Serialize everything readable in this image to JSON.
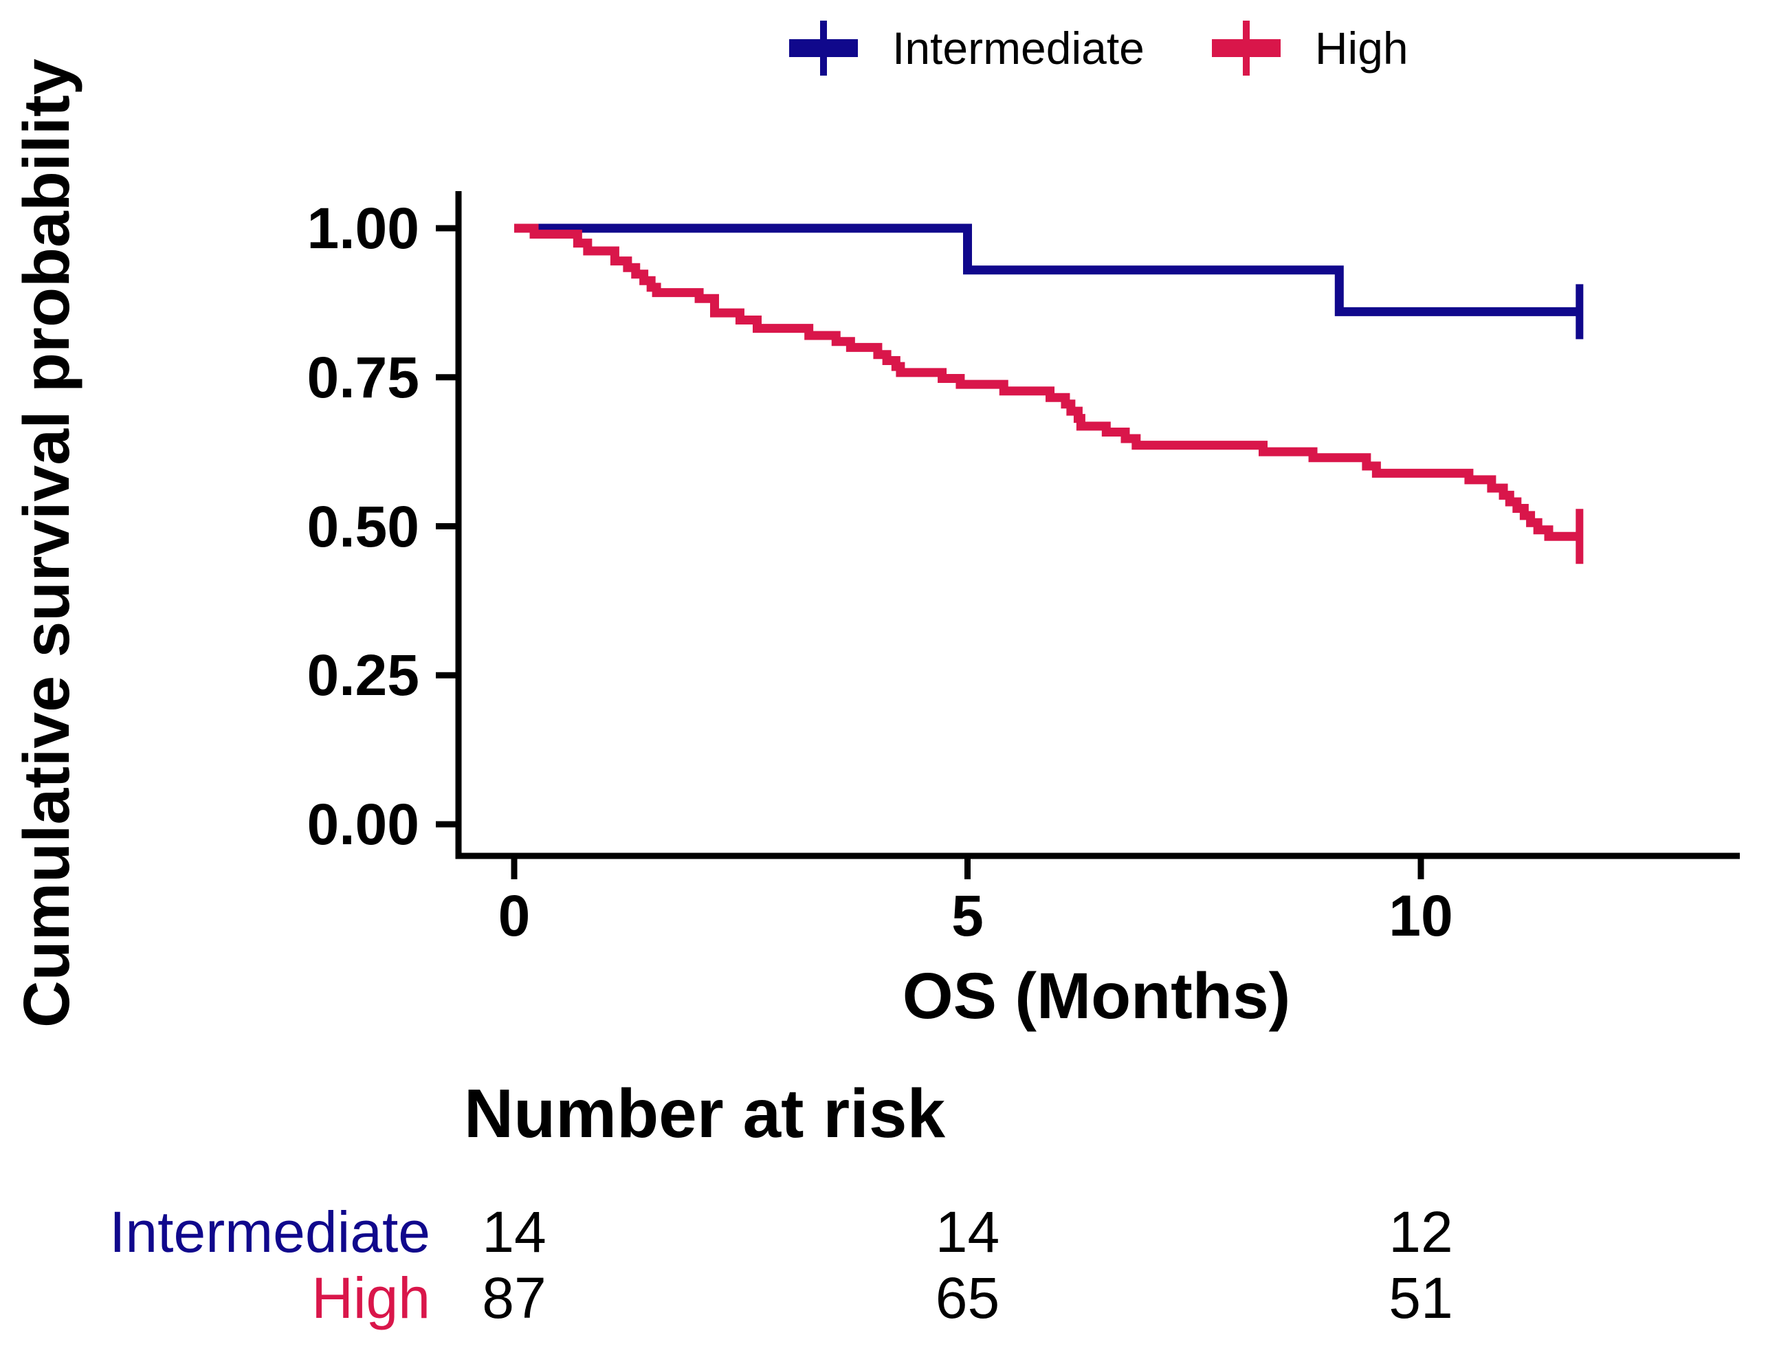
{
  "figure": {
    "y_axis_title": "Cumulative survival probability",
    "x_axis_title": "OS (Months)"
  },
  "chart_data": {
    "type": "line",
    "subtype": "kaplan-meier-step",
    "xlabel": "OS (Months)",
    "ylabel": "Cumulative survival probability",
    "xlim": [
      0,
      13.5
    ],
    "ylim": [
      0,
      1.0
    ],
    "x_ticks": [
      0,
      5,
      10
    ],
    "y_ticks": [
      1.0,
      0.75,
      0.5,
      0.25,
      0.0
    ],
    "y_tick_labels": [
      "1.00",
      "0.75",
      "0.50",
      "0.25",
      "0.00"
    ],
    "grid": false,
    "legend_position": "top",
    "axis_color": "#000000",
    "series": [
      {
        "name": "Intermediate",
        "color": "#10088C",
        "end_time": 11.75,
        "steps": [
          [
            0,
            1.0
          ],
          [
            5.0,
            0.93
          ],
          [
            9.1,
            0.86
          ]
        ],
        "censored": [
          [
            11.75,
            0.86
          ]
        ]
      },
      {
        "name": "High",
        "color": "#D9164A",
        "end_time": 11.75,
        "steps": [
          [
            0,
            1.0
          ],
          [
            0.22,
            0.99
          ],
          [
            0.7,
            0.975
          ],
          [
            0.81,
            0.962
          ],
          [
            1.11,
            0.945
          ],
          [
            1.25,
            0.934
          ],
          [
            1.34,
            0.923
          ],
          [
            1.43,
            0.912
          ],
          [
            1.51,
            0.901
          ],
          [
            1.57,
            0.892
          ],
          [
            2.04,
            0.882
          ],
          [
            2.21,
            0.858
          ],
          [
            2.49,
            0.846
          ],
          [
            2.68,
            0.832
          ],
          [
            3.25,
            0.82
          ],
          [
            3.55,
            0.81
          ],
          [
            3.71,
            0.8
          ],
          [
            4.01,
            0.788
          ],
          [
            4.11,
            0.778
          ],
          [
            4.21,
            0.768
          ],
          [
            4.26,
            0.758
          ],
          [
            4.72,
            0.748
          ],
          [
            4.92,
            0.738
          ],
          [
            5.4,
            0.727
          ],
          [
            5.91,
            0.716
          ],
          [
            6.08,
            0.705
          ],
          [
            6.14,
            0.693
          ],
          [
            6.22,
            0.681
          ],
          [
            6.25,
            0.668
          ],
          [
            6.53,
            0.658
          ],
          [
            6.74,
            0.647
          ],
          [
            6.86,
            0.636
          ],
          [
            8.26,
            0.625
          ],
          [
            8.81,
            0.615
          ],
          [
            9.4,
            0.601
          ],
          [
            9.51,
            0.589
          ],
          [
            10.53,
            0.578
          ],
          [
            10.78,
            0.564
          ],
          [
            10.91,
            0.552
          ],
          [
            10.98,
            0.541
          ],
          [
            11.06,
            0.53
          ],
          [
            11.14,
            0.518
          ],
          [
            11.21,
            0.506
          ],
          [
            11.29,
            0.494
          ],
          [
            11.41,
            0.483
          ]
        ],
        "censored": [
          [
            11.75,
            0.483
          ]
        ]
      }
    ],
    "risk_table": {
      "title": "Number at risk",
      "times": [
        0,
        5,
        10
      ],
      "rows": [
        {
          "label": "Intermediate",
          "color": "#10088C",
          "values": [
            "14",
            "14",
            "12"
          ]
        },
        {
          "label": "High",
          "color": "#D9164A",
          "values": [
            "87",
            "65",
            "51"
          ]
        }
      ]
    }
  }
}
